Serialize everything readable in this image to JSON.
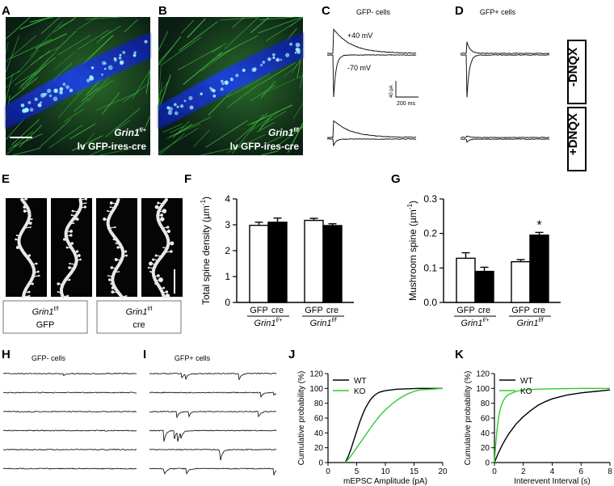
{
  "panel_letters": [
    "A",
    "B",
    "C",
    "D",
    "E",
    "F",
    "G",
    "H",
    "I",
    "J",
    "K"
  ],
  "microscopy": {
    "A": {
      "gene": "Grin1",
      "sup": "f/+",
      "virus": "lv GFP-ires-cre"
    },
    "B": {
      "gene": "Grin1",
      "sup": "f/f",
      "virus": "lv GFP-ires-cre"
    }
  },
  "colors": {
    "gfp": "#3bbf3b",
    "dapi": "#1a3fd6",
    "ko": "#2ecc2e",
    "wt": "#000000"
  },
  "ephys": {
    "C_title": "GFP- cells",
    "D_title": "GFP+ cells",
    "pos_label": "+40 mV",
    "neg_label": "-70 mV",
    "scale_y": "40 pA",
    "scale_x": "200 ms",
    "box_minus": "-DNQX",
    "box_plus": "+DNQX"
  },
  "spines": {
    "groups": [
      {
        "gene": "Grin1",
        "sup": "f/f",
        "label": "GFP"
      },
      {
        "gene": "Grin1",
        "sup": "f/f",
        "label": "cre"
      }
    ]
  },
  "traces": {
    "H_title": "GFP- cells",
    "I_title": "GFP+ cells"
  },
  "chart_data": [
    {
      "type": "bar",
      "panel": "F",
      "ylabel": "Total spine density (µm",
      "ylabel_sup": "-1",
      "ylabel_end": ")",
      "ylim": [
        0,
        4
      ],
      "yticks": [
        "0",
        "1",
        "2",
        "3",
        "4"
      ],
      "tick_values": [
        0,
        1,
        2,
        3,
        4
      ],
      "categories": [
        "GFP",
        "cre",
        "GFP",
        "cre"
      ],
      "group_labels": [
        {
          "gene": "Grin1",
          "sup": "f/+"
        },
        {
          "gene": "Grin1",
          "sup": "f/f"
        }
      ],
      "values": [
        2.98,
        3.1,
        3.17,
        2.97
      ],
      "errors": [
        0.12,
        0.16,
        0.08,
        0.07
      ],
      "fills": [
        "#ffffff",
        "#000000",
        "#ffffff",
        "#000000"
      ]
    },
    {
      "type": "bar",
      "panel": "G",
      "ylabel": "Mushroom spine (µm",
      "ylabel_sup": "-1",
      "ylabel_end": ")",
      "ylim": [
        0,
        0.3
      ],
      "yticks": [
        "0.0",
        "0.1",
        "0.2",
        "0.3"
      ],
      "tick_values": [
        0,
        0.1,
        0.2,
        0.3
      ],
      "categories": [
        "GFP",
        "cre",
        "GFP",
        "cre"
      ],
      "group_labels": [
        {
          "gene": "Grin1",
          "sup": "f/+"
        },
        {
          "gene": "Grin1",
          "sup": "f/f"
        }
      ],
      "values": [
        0.128,
        0.09,
        0.118,
        0.195
      ],
      "errors": [
        0.016,
        0.012,
        0.006,
        0.008
      ],
      "fills": [
        "#ffffff",
        "#000000",
        "#ffffff",
        "#000000"
      ],
      "annotation": "*"
    },
    {
      "type": "line",
      "panel": "J",
      "xlabel": "mEPSC Amplitude (pA)",
      "ylabel": "Cumulative probability (%)",
      "xlim": [
        0,
        20
      ],
      "ylim": [
        0,
        120
      ],
      "xticks": [
        "0",
        "5",
        "10",
        "15",
        "20"
      ],
      "xtick_values": [
        0,
        5,
        10,
        15,
        20
      ],
      "yticks": [
        "0",
        "20",
        "40",
        "60",
        "80",
        "100",
        "120"
      ],
      "ytick_values": [
        0,
        20,
        40,
        60,
        80,
        100,
        120
      ],
      "legend": "top-left",
      "series": [
        {
          "name": "WT",
          "color": "#000000",
          "x": [
            3,
            3.5,
            4,
            4.5,
            5,
            5.5,
            6,
            6.5,
            7,
            7.5,
            8,
            8.5,
            9,
            10,
            11,
            12,
            14,
            16,
            20
          ],
          "y": [
            0,
            8,
            18,
            30,
            42,
            54,
            64,
            73,
            80,
            86,
            90,
            93,
            95,
            97,
            98,
            99,
            99.5,
            100,
            100
          ]
        },
        {
          "name": "KO",
          "color": "#2ecc2e",
          "x": [
            3,
            3.5,
            4,
            4.5,
            5,
            6,
            7,
            8,
            9,
            10,
            11,
            12,
            13,
            14,
            15,
            16,
            18,
            20
          ],
          "y": [
            0,
            4,
            9,
            14,
            20,
            31,
            42,
            53,
            63,
            71,
            78,
            84,
            89,
            93,
            96,
            98,
            99,
            100
          ]
        }
      ]
    },
    {
      "type": "line",
      "panel": "K",
      "xlabel": "Interevent Interval (s)",
      "ylabel": "Cumulative probability (%)",
      "xlim": [
        0,
        8
      ],
      "ylim": [
        0,
        120
      ],
      "xticks": [
        "0",
        "2",
        "4",
        "6",
        "8"
      ],
      "xtick_values": [
        0,
        2,
        4,
        6,
        8
      ],
      "yticks": [
        "0",
        "20",
        "40",
        "60",
        "80",
        "100",
        "120"
      ],
      "ytick_values": [
        0,
        20,
        40,
        60,
        80,
        100,
        120
      ],
      "legend": "top-left",
      "series": [
        {
          "name": "WT",
          "color": "#000000",
          "x": [
            0,
            0.25,
            0.5,
            0.75,
            1,
            1.5,
            2,
            2.5,
            3,
            3.5,
            4,
            5,
            6,
            7,
            8
          ],
          "y": [
            0,
            12,
            22,
            31,
            39,
            52,
            62,
            70,
            77,
            82,
            86,
            91,
            94,
            96,
            98
          ]
        },
        {
          "name": "KO",
          "color": "#2ecc2e",
          "x": [
            0,
            0.1,
            0.2,
            0.3,
            0.4,
            0.6,
            0.8,
            1,
            1.5,
            2,
            3,
            4,
            6,
            8
          ],
          "y": [
            0,
            28,
            48,
            62,
            72,
            83,
            89,
            92,
            96,
            98,
            99,
            99.5,
            100,
            100
          ]
        }
      ]
    }
  ]
}
